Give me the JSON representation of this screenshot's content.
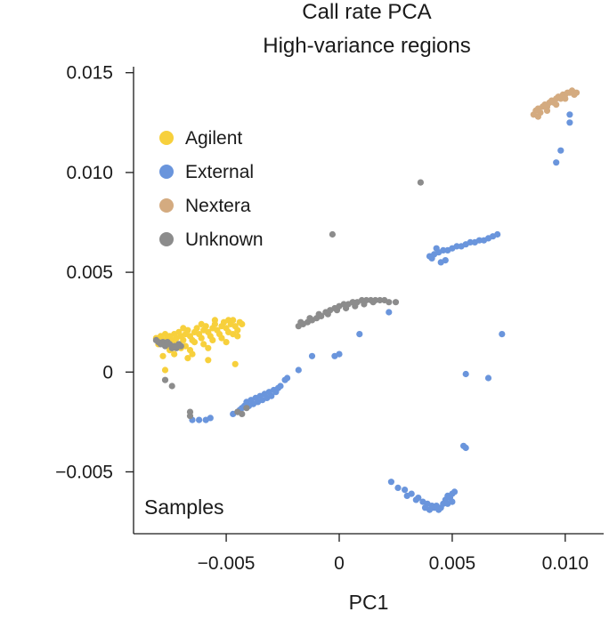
{
  "chart_data": {
    "type": "scatter",
    "title": "Call rate PCA",
    "subtitle": "High-variance regions",
    "xlabel": "PC1",
    "ylabel": "",
    "annotation": "Samples",
    "xlim": [
      -0.0091,
      0.0117
    ],
    "ylim": [
      -0.0081,
      0.0153
    ],
    "x_ticks": [
      -0.005,
      0,
      0.005,
      0.01
    ],
    "x_tick_labels": [
      "−0.005",
      "0",
      "0.005",
      "0.010"
    ],
    "y_ticks": [
      0.015,
      0.01,
      0.005,
      0,
      -0.005
    ],
    "y_tick_labels": [
      "0.015",
      "0.010",
      "0.005",
      "0",
      "−0.005"
    ],
    "grid": false,
    "legend_position": "upper-left",
    "colors": {
      "Agilent": "#f7d03c",
      "External": "#6a95dc",
      "Nextera": "#d4ab80",
      "Unknown": "#8c8c8c"
    },
    "series": [
      {
        "name": "Agilent",
        "points": [
          [
            -0.0081,
            0.0017
          ],
          [
            -0.0079,
            0.0018
          ],
          [
            -0.0078,
            0.0016
          ],
          [
            -0.0077,
            0.0019
          ],
          [
            -0.0076,
            0.0017
          ],
          [
            -0.0075,
            0.0018
          ],
          [
            -0.0074,
            0.0016
          ],
          [
            -0.0073,
            0.0019
          ],
          [
            -0.0072,
            0.0017
          ],
          [
            -0.0071,
            0.002
          ],
          [
            -0.007,
            0.0018
          ],
          [
            -0.0069,
            0.0016
          ],
          [
            -0.0068,
            0.0019
          ],
          [
            -0.0067,
            0.0021
          ],
          [
            -0.0066,
            0.0018
          ],
          [
            -0.0065,
            0.0016
          ],
          [
            -0.0064,
            0.002
          ],
          [
            -0.0063,
            0.0022
          ],
          [
            -0.0062,
            0.0019
          ],
          [
            -0.0061,
            0.0017
          ],
          [
            -0.006,
            0.0021
          ],
          [
            -0.0059,
            0.0023
          ],
          [
            -0.0058,
            0.002
          ],
          [
            -0.0057,
            0.0018
          ],
          [
            -0.0056,
            0.0022
          ],
          [
            -0.0055,
            0.0024
          ],
          [
            -0.0054,
            0.0021
          ],
          [
            -0.0053,
            0.0019
          ],
          [
            -0.0052,
            0.0023
          ],
          [
            -0.0051,
            0.0025
          ],
          [
            -0.005,
            0.0022
          ],
          [
            -0.0049,
            0.002
          ],
          [
            -0.0048,
            0.0024
          ],
          [
            -0.0047,
            0.0026
          ],
          [
            -0.0046,
            0.0023
          ],
          [
            -0.0045,
            0.0021
          ],
          [
            -0.0044,
            0.0025
          ],
          [
            -0.0043,
            0.0024
          ],
          [
            -0.008,
            0.0014
          ],
          [
            -0.0076,
            0.0013
          ],
          [
            -0.0072,
            0.0014
          ],
          [
            -0.0068,
            0.0013
          ],
          [
            -0.0064,
            0.0015
          ],
          [
            -0.006,
            0.0014
          ],
          [
            -0.0056,
            0.0016
          ],
          [
            -0.0052,
            0.0017
          ],
          [
            -0.0069,
            0.0022
          ],
          [
            -0.0061,
            0.0024
          ],
          [
            -0.0055,
            0.0026
          ],
          [
            -0.0049,
            0.0026
          ],
          [
            -0.0075,
            0.0011
          ],
          [
            -0.007,
            0.0012
          ],
          [
            -0.0066,
            0.0011
          ],
          [
            -0.0058,
            0.0012
          ],
          [
            -0.0045,
            0.0018
          ],
          [
            -0.0078,
            0.0008
          ],
          [
            -0.0073,
            0.0009
          ],
          [
            -0.0065,
            0.0009
          ],
          [
            -0.005,
            0.0015
          ],
          [
            -0.0047,
            0.0019
          ],
          [
            -0.0077,
            0.0001
          ],
          [
            -0.0067,
            0.0007
          ],
          [
            -0.0058,
            0.0006
          ],
          [
            -0.0046,
            0.0004
          ]
        ]
      },
      {
        "name": "External",
        "points": [
          [
            -0.0065,
            -0.0024
          ],
          [
            -0.0062,
            -0.0024
          ],
          [
            -0.0059,
            -0.0024
          ],
          [
            -0.0057,
            -0.0023
          ],
          [
            -0.0047,
            -0.0021
          ],
          [
            -0.0045,
            -0.002
          ],
          [
            -0.0044,
            -0.0019
          ],
          [
            -0.0043,
            -0.0018
          ],
          [
            -0.0042,
            -0.0017
          ],
          [
            -0.0041,
            -0.0015
          ],
          [
            -0.004,
            -0.0017
          ],
          [
            -0.0039,
            -0.0014
          ],
          [
            -0.0038,
            -0.0016
          ],
          [
            -0.0037,
            -0.0013
          ],
          [
            -0.0036,
            -0.0015
          ],
          [
            -0.0035,
            -0.0012
          ],
          [
            -0.0034,
            -0.0014
          ],
          [
            -0.0033,
            -0.0011
          ],
          [
            -0.0032,
            -0.0013
          ],
          [
            -0.0031,
            -0.001
          ],
          [
            -0.003,
            -0.0012
          ],
          [
            -0.0029,
            -0.0009
          ],
          [
            -0.0028,
            -0.001
          ],
          [
            -0.0027,
            -0.0008
          ],
          [
            -0.0026,
            -0.0007
          ],
          [
            -0.0024,
            -0.0004
          ],
          [
            -0.0023,
            -0.0003
          ],
          [
            -0.0018,
            0.0001
          ],
          [
            -0.0012,
            0.0008
          ],
          [
            -0.0002,
            0.0008
          ],
          [
            0.0,
            0.0009
          ],
          [
            0.0009,
            0.0019
          ],
          [
            0.0022,
            0.003
          ],
          [
            0.0072,
            0.0019
          ],
          [
            0.0066,
            -0.0003
          ],
          [
            0.0056,
            -0.0001
          ],
          [
            0.0055,
            -0.0037
          ],
          [
            0.0056,
            -0.0038
          ],
          [
            0.0023,
            -0.0055
          ],
          [
            0.0026,
            -0.0058
          ],
          [
            0.0029,
            -0.0059
          ],
          [
            0.0032,
            -0.0061
          ],
          [
            0.0035,
            -0.0063
          ],
          [
            0.0037,
            -0.0065
          ],
          [
            0.0039,
            -0.0066
          ],
          [
            0.0041,
            -0.0067
          ],
          [
            0.0042,
            -0.0068
          ],
          [
            0.0043,
            -0.0067
          ],
          [
            0.0044,
            -0.0069
          ],
          [
            0.0045,
            -0.0068
          ],
          [
            0.0046,
            -0.0066
          ],
          [
            0.0047,
            -0.0064
          ],
          [
            0.0048,
            -0.0062
          ],
          [
            0.0049,
            -0.0063
          ],
          [
            0.005,
            -0.0061
          ],
          [
            0.0051,
            -0.006
          ],
          [
            0.004,
            -0.0069
          ],
          [
            0.0038,
            -0.0068
          ],
          [
            0.0034,
            -0.0064
          ],
          [
            0.003,
            -0.0062
          ],
          [
            0.0048,
            -0.0066
          ],
          [
            0.005,
            -0.0065
          ],
          [
            0.004,
            0.0058
          ],
          [
            0.0042,
            0.0059
          ],
          [
            0.0044,
            0.006
          ],
          [
            0.0046,
            0.0061
          ],
          [
            0.0048,
            0.0061
          ],
          [
            0.005,
            0.0062
          ],
          [
            0.0052,
            0.0063
          ],
          [
            0.0054,
            0.0063
          ],
          [
            0.0056,
            0.0064
          ],
          [
            0.0058,
            0.0065
          ],
          [
            0.006,
            0.0065
          ],
          [
            0.0062,
            0.0066
          ],
          [
            0.0064,
            0.0066
          ],
          [
            0.0066,
            0.0067
          ],
          [
            0.0068,
            0.0068
          ],
          [
            0.007,
            0.0069
          ],
          [
            0.0041,
            0.0057
          ],
          [
            0.0045,
            0.0055
          ],
          [
            0.0047,
            0.0056
          ],
          [
            0.0043,
            0.0062
          ],
          [
            0.0096,
            0.0105
          ],
          [
            0.0098,
            0.0111
          ],
          [
            0.0102,
            0.0125
          ],
          [
            0.0102,
            0.0129
          ]
        ]
      },
      {
        "name": "Nextera",
        "points": [
          [
            0.0086,
            0.0129
          ],
          [
            0.0087,
            0.0131
          ],
          [
            0.0088,
            0.0132
          ],
          [
            0.0089,
            0.013
          ],
          [
            0.009,
            0.0133
          ],
          [
            0.0091,
            0.0134
          ],
          [
            0.0092,
            0.0133
          ],
          [
            0.0093,
            0.0135
          ],
          [
            0.0094,
            0.0136
          ],
          [
            0.0095,
            0.0135
          ],
          [
            0.0096,
            0.0137
          ],
          [
            0.0097,
            0.0138
          ],
          [
            0.0098,
            0.0137
          ],
          [
            0.0099,
            0.0139
          ],
          [
            0.01,
            0.0139
          ],
          [
            0.0101,
            0.014
          ],
          [
            0.0102,
            0.014
          ],
          [
            0.0103,
            0.0141
          ],
          [
            0.0104,
            0.014
          ],
          [
            0.0105,
            0.014
          ],
          [
            0.0088,
            0.0128
          ],
          [
            0.0092,
            0.0131
          ],
          [
            0.0096,
            0.0134
          ],
          [
            0.01,
            0.0137
          ],
          [
            0.0104,
            0.0139
          ]
        ]
      },
      {
        "name": "Unknown",
        "points": [
          [
            -0.0081,
            0.0016
          ],
          [
            -0.008,
            0.0015
          ],
          [
            -0.0079,
            0.0014
          ],
          [
            -0.0078,
            0.0015
          ],
          [
            -0.0077,
            0.0013
          ],
          [
            -0.0076,
            0.0015
          ],
          [
            -0.0075,
            0.0014
          ],
          [
            -0.0074,
            0.0012
          ],
          [
            -0.0073,
            0.0013
          ],
          [
            -0.0072,
            0.0012
          ],
          [
            -0.0071,
            0.0014
          ],
          [
            -0.007,
            0.0013
          ],
          [
            -0.0077,
            -0.0004
          ],
          [
            -0.0074,
            -0.0007
          ],
          [
            -0.0066,
            -0.002
          ],
          [
            -0.0066,
            -0.0022
          ],
          [
            -0.0045,
            -0.002
          ],
          [
            -0.0043,
            -0.0021
          ],
          [
            -0.0041,
            -0.0018
          ],
          [
            -0.0018,
            0.0023
          ],
          [
            -0.0016,
            0.0024
          ],
          [
            -0.0014,
            0.0025
          ],
          [
            -0.0012,
            0.0026
          ],
          [
            -0.001,
            0.0027
          ],
          [
            -0.0008,
            0.0028
          ],
          [
            -0.0006,
            0.003
          ],
          [
            -0.0004,
            0.0031
          ],
          [
            -0.0002,
            0.0032
          ],
          [
            0.0,
            0.0033
          ],
          [
            0.0002,
            0.0034
          ],
          [
            0.0004,
            0.0034
          ],
          [
            0.0006,
            0.0035
          ],
          [
            0.0008,
            0.0035
          ],
          [
            0.001,
            0.0036
          ],
          [
            0.0012,
            0.0036
          ],
          [
            0.0014,
            0.0036
          ],
          [
            0.0016,
            0.0036
          ],
          [
            0.0018,
            0.0036
          ],
          [
            0.002,
            0.0036
          ],
          [
            0.0022,
            0.0035
          ],
          [
            -0.0017,
            0.0025
          ],
          [
            -0.0013,
            0.0027
          ],
          [
            -0.0009,
            0.0029
          ],
          [
            -0.0005,
            0.0029
          ],
          [
            -0.0001,
            0.0031
          ],
          [
            0.0003,
            0.0032
          ],
          [
            0.0007,
            0.0033
          ],
          [
            0.0011,
            0.0034
          ],
          [
            0.0015,
            0.0035
          ],
          [
            0.0025,
            0.0035
          ],
          [
            -0.0003,
            0.0069
          ],
          [
            0.0036,
            0.0095
          ]
        ]
      }
    ]
  }
}
